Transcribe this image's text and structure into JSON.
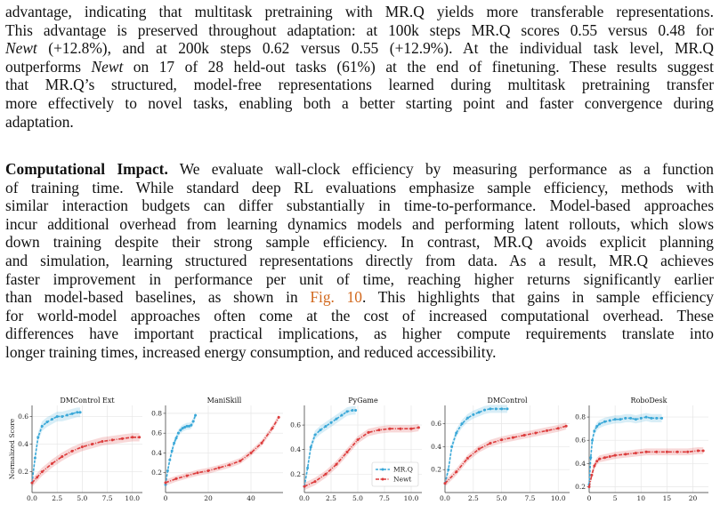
{
  "paragraph1": {
    "lines": [
      [
        {
          "t": "advantage, indicating that multitask pretraining with MR.Q yields more transferable representations."
        }
      ],
      [
        {
          "t": "This advantage is preserved throughout adaptation: at 100k steps MR.Q scores 0.55 versus 0.48 for"
        }
      ],
      [
        {
          "t": "Newt",
          "i": true
        },
        {
          "t": " (+12.8%), and at 200k steps 0.62 versus 0.55 (+12.9%). At the individual task level, MR.Q"
        }
      ],
      [
        {
          "t": "outperforms "
        },
        {
          "t": "Newt",
          "i": true
        },
        {
          "t": " on 17 of 28 held-out tasks (61%) at the end of finetuning. These results suggest"
        }
      ],
      [
        {
          "t": "that MR.Q’s structured, model-free representations learned during multitask pretraining transfer"
        }
      ],
      [
        {
          "t": "more effectively to novel tasks, enabling both a better starting point and faster convergence during"
        }
      ],
      [
        {
          "t": "adaptation."
        }
      ]
    ]
  },
  "paragraph2": {
    "heading": "Computational Impact.",
    "lines": [
      [
        {
          "t": "Computational Impact.",
          "b": true
        },
        {
          "t": "   We evaluate wall-clock efficiency by measuring performance as a function"
        }
      ],
      [
        {
          "t": "of training time. While standard deep RL evaluations emphasize sample efficiency, methods with"
        }
      ],
      [
        {
          "t": "similar interaction budgets can differ substantially in time-to-performance. Model-based approaches"
        }
      ],
      [
        {
          "t": "incur additional overhead from learning dynamics models and performing latent rollouts, which slows"
        }
      ],
      [
        {
          "t": "down training despite their strong sample efficiency. In contrast, MR.Q avoids explicit planning"
        }
      ],
      [
        {
          "t": "and simulation, learning structured representations directly from data. As a result, MR.Q achieves"
        }
      ],
      [
        {
          "t": "faster improvement in performance per unit of time, reaching higher returns significantly earlier"
        }
      ],
      [
        {
          "t": "than model-based baselines, as shown in "
        },
        {
          "t": "Fig. 10",
          "r": true
        },
        {
          "t": ". This highlights that gains in sample efficiency"
        }
      ],
      [
        {
          "t": "for world-model approaches often come at the cost of increased computational overhead. These"
        }
      ],
      [
        {
          "t": "differences have important practical implications, as higher compute requirements translate into"
        }
      ],
      [
        {
          "t": "longer training times, increased energy consumption, and reduced accessibility."
        }
      ]
    ]
  },
  "colors": {
    "mrq": "#3aa8d8",
    "newt": "#dc3c3c",
    "ref": "#d2691e",
    "grid": "#e6e6e6"
  },
  "ylabel": "Normalized Score",
  "legend": [
    {
      "name": "MR.Q",
      "color": "#3aa8d8"
    },
    {
      "name": "Newt",
      "color": "#dc3c3c"
    }
  ],
  "chart_data": [
    {
      "type": "line",
      "title": "DMControl Ext",
      "xlim": [
        0,
        11
      ],
      "ylim": [
        0.05,
        0.68
      ],
      "xticks": [
        "0.0",
        "2.5",
        "5.0",
        "7.5",
        "10.0"
      ],
      "xtick_values": [
        0,
        2.5,
        5,
        7.5,
        10
      ],
      "yticks": [
        "0.2",
        "0.4",
        "0.6"
      ],
      "ytick_values": [
        0.2,
        0.4,
        0.6
      ],
      "series": [
        {
          "name": "MR.Q",
          "x": [
            0,
            0.3,
            0.6,
            1,
            1.5,
            2,
            2.5,
            3,
            3.5,
            4,
            4.5,
            4.8
          ],
          "y": [
            0.12,
            0.3,
            0.45,
            0.53,
            0.56,
            0.58,
            0.6,
            0.6,
            0.61,
            0.62,
            0.63,
            0.63
          ]
        },
        {
          "name": "Newt",
          "x": [
            0,
            0.5,
            1,
            2,
            3,
            4,
            5,
            6,
            7,
            8,
            9,
            10,
            10.7
          ],
          "y": [
            0.12,
            0.16,
            0.2,
            0.26,
            0.31,
            0.35,
            0.38,
            0.4,
            0.42,
            0.43,
            0.44,
            0.45,
            0.45
          ]
        }
      ]
    },
    {
      "type": "line",
      "title": "ManiSkill",
      "xlim": [
        0,
        55
      ],
      "ylim": [
        0.0,
        0.88
      ],
      "xticks": [
        "0",
        "20",
        "40"
      ],
      "xtick_values": [
        0,
        20,
        40
      ],
      "yticks": [
        "0.2",
        "0.4",
        "0.6",
        "0.8"
      ],
      "ytick_values": [
        0.2,
        0.4,
        0.6,
        0.8
      ],
      "series": [
        {
          "name": "MR.Q",
          "x": [
            0,
            1,
            2,
            3,
            4,
            5,
            6,
            7,
            8,
            9,
            10,
            11,
            12,
            13,
            14
          ],
          "y": [
            0.08,
            0.22,
            0.33,
            0.42,
            0.5,
            0.55,
            0.6,
            0.63,
            0.65,
            0.66,
            0.67,
            0.67,
            0.68,
            0.72,
            0.78
          ]
        },
        {
          "name": "Newt",
          "x": [
            0,
            5,
            10,
            15,
            20,
            25,
            30,
            35,
            40,
            45,
            50,
            53
          ],
          "y": [
            0.1,
            0.14,
            0.17,
            0.2,
            0.22,
            0.25,
            0.28,
            0.32,
            0.4,
            0.5,
            0.65,
            0.76
          ]
        }
      ]
    },
    {
      "type": "line",
      "title": "PyGame",
      "xlim": [
        0,
        11
      ],
      "ylim": [
        0.05,
        0.76
      ],
      "xticks": [
        "0.0",
        "2.5",
        "5.0",
        "7.5",
        "10.0"
      ],
      "xtick_values": [
        0,
        2.5,
        5,
        7.5,
        10
      ],
      "yticks": [
        "0.2",
        "0.4",
        "0.6"
      ],
      "ytick_values": [
        0.2,
        0.4,
        0.6
      ],
      "series": [
        {
          "name": "MR.Q",
          "x": [
            0,
            0.3,
            0.6,
            1,
            1.5,
            2,
            2.5,
            3,
            3.5,
            4,
            4.5,
            4.8
          ],
          "y": [
            0.1,
            0.25,
            0.42,
            0.52,
            0.56,
            0.59,
            0.62,
            0.65,
            0.68,
            0.71,
            0.72,
            0.72
          ]
        },
        {
          "name": "Newt",
          "x": [
            0,
            1,
            2,
            3,
            4,
            5,
            6,
            7,
            8,
            9,
            10,
            10.7
          ],
          "y": [
            0.1,
            0.14,
            0.2,
            0.28,
            0.38,
            0.48,
            0.54,
            0.56,
            0.57,
            0.57,
            0.57,
            0.58
          ]
        }
      ]
    },
    {
      "type": "line",
      "title": "DMControl",
      "xlim": [
        0,
        11
      ],
      "ylim": [
        0.0,
        0.76
      ],
      "xticks": [
        "0.0",
        "2.5",
        "5.0",
        "7.5",
        "10.0"
      ],
      "xtick_values": [
        0,
        2.5,
        5,
        7.5,
        10
      ],
      "yticks": [
        "0.2",
        "0.4",
        "0.6"
      ],
      "ytick_values": [
        0.2,
        0.4,
        0.6
      ],
      "series": [
        {
          "name": "MR.Q",
          "x": [
            0,
            0.3,
            0.6,
            1,
            1.5,
            2,
            2.5,
            3,
            3.5,
            4,
            4.5,
            5,
            5.5
          ],
          "y": [
            0.08,
            0.2,
            0.4,
            0.52,
            0.6,
            0.65,
            0.68,
            0.7,
            0.72,
            0.73,
            0.73,
            0.73,
            0.73
          ]
        },
        {
          "name": "Newt",
          "x": [
            0,
            1,
            2,
            3,
            4,
            5,
            6,
            7,
            8,
            9,
            10,
            10.7
          ],
          "y": [
            0.08,
            0.18,
            0.3,
            0.38,
            0.43,
            0.46,
            0.48,
            0.5,
            0.52,
            0.54,
            0.56,
            0.58
          ]
        }
      ]
    },
    {
      "type": "line",
      "title": "RoboDesk",
      "xlim": [
        0,
        23
      ],
      "ylim": [
        0.15,
        0.9
      ],
      "xticks": [
        "0",
        "5",
        "10",
        "15",
        "20"
      ],
      "xtick_values": [
        0,
        5,
        10,
        15,
        20
      ],
      "yticks": [
        "0.2",
        "0.4",
        "0.6",
        "0.8"
      ],
      "ytick_values": [
        0.2,
        0.4,
        0.6,
        0.8
      ],
      "series": [
        {
          "name": "MR.Q",
          "x": [
            0,
            0.3,
            0.6,
            1,
            1.5,
            2,
            3,
            4,
            5,
            6,
            7,
            8,
            9,
            10,
            11,
            12,
            13,
            14
          ],
          "y": [
            0.22,
            0.45,
            0.6,
            0.68,
            0.72,
            0.74,
            0.76,
            0.77,
            0.78,
            0.78,
            0.79,
            0.79,
            0.78,
            0.79,
            0.8,
            0.79,
            0.79,
            0.79
          ]
        },
        {
          "name": "Newt",
          "x": [
            0,
            0.5,
            1,
            1.5,
            2,
            3,
            4,
            5,
            7,
            9,
            11,
            13,
            15,
            17,
            19,
            21,
            22
          ],
          "y": [
            0.2,
            0.3,
            0.38,
            0.42,
            0.44,
            0.45,
            0.46,
            0.47,
            0.48,
            0.49,
            0.5,
            0.5,
            0.5,
            0.5,
            0.5,
            0.51,
            0.51
          ]
        }
      ]
    }
  ]
}
